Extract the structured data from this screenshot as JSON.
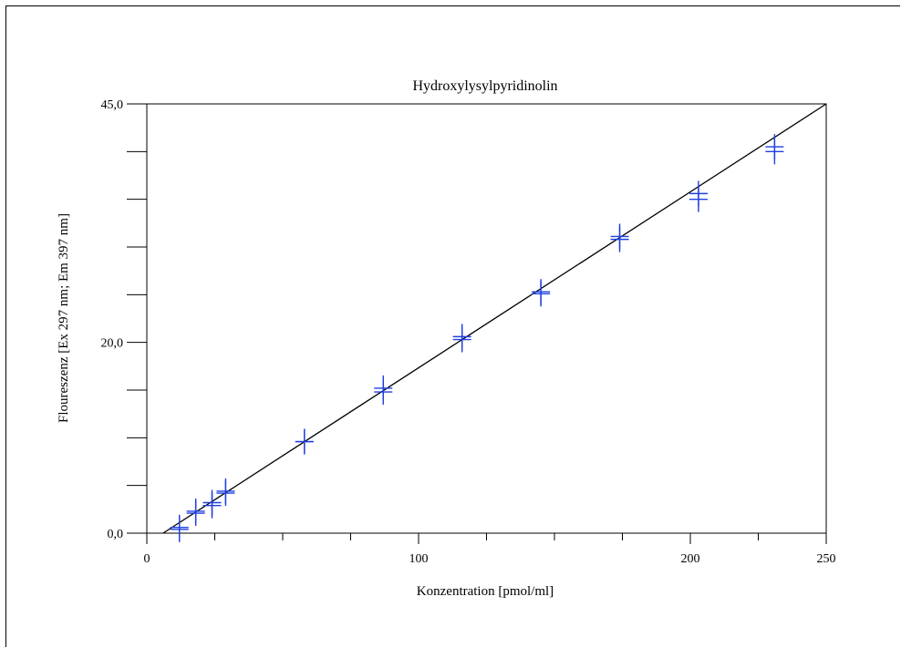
{
  "chart_data": {
    "type": "scatter",
    "title": "Hydroxylysylpyridinolin",
    "xlabel": "Konzentration [pmol/ml]",
    "ylabel": "Floureszenz [Ex 297 nm; Em 397 nm]",
    "xlim": [
      0,
      250
    ],
    "ylim": [
      0,
      45
    ],
    "x_major_ticks": [
      0,
      100,
      200,
      250
    ],
    "x_major_tick_labels": [
      "0",
      "100",
      "200",
      "250"
    ],
    "x_minor_ticks": [
      25,
      50,
      75,
      125,
      150,
      175,
      225
    ],
    "y_major_ticks": [
      0,
      20,
      45
    ],
    "y_major_tick_labels": [
      "0,0",
      "20,0",
      "45,0"
    ],
    "y_minor_ticks": [
      5,
      10,
      15,
      25,
      30,
      35,
      40
    ],
    "grid": false,
    "marker": "plus",
    "marker_color": "#1f3fe0",
    "line_color": "#000000",
    "series": [
      {
        "points": [
          {
            "x": 12,
            "y": 0.6
          },
          {
            "x": 12,
            "y": 0.4
          },
          {
            "x": 18,
            "y": 2.3
          },
          {
            "x": 18,
            "y": 2.1
          },
          {
            "x": 24,
            "y": 3.2
          },
          {
            "x": 24,
            "y": 2.9
          },
          {
            "x": 29,
            "y": 4.4
          },
          {
            "x": 29,
            "y": 4.2
          },
          {
            "x": 58,
            "y": 9.6
          },
          {
            "x": 58,
            "y": 9.6
          },
          {
            "x": 87,
            "y": 15.2
          },
          {
            "x": 87,
            "y": 14.8
          },
          {
            "x": 116,
            "y": 20.6
          },
          {
            "x": 116,
            "y": 20.3
          },
          {
            "x": 145,
            "y": 25.3
          },
          {
            "x": 145,
            "y": 25.1
          },
          {
            "x": 174,
            "y": 31.1
          },
          {
            "x": 174,
            "y": 30.8
          },
          {
            "x": 203,
            "y": 35.6
          },
          {
            "x": 203,
            "y": 35.0
          },
          {
            "x": 231,
            "y": 40.5
          },
          {
            "x": 231,
            "y": 40.0
          }
        ]
      }
    ],
    "fit_line": {
      "x": [
        6,
        250
      ],
      "y": [
        0,
        45
      ]
    }
  }
}
